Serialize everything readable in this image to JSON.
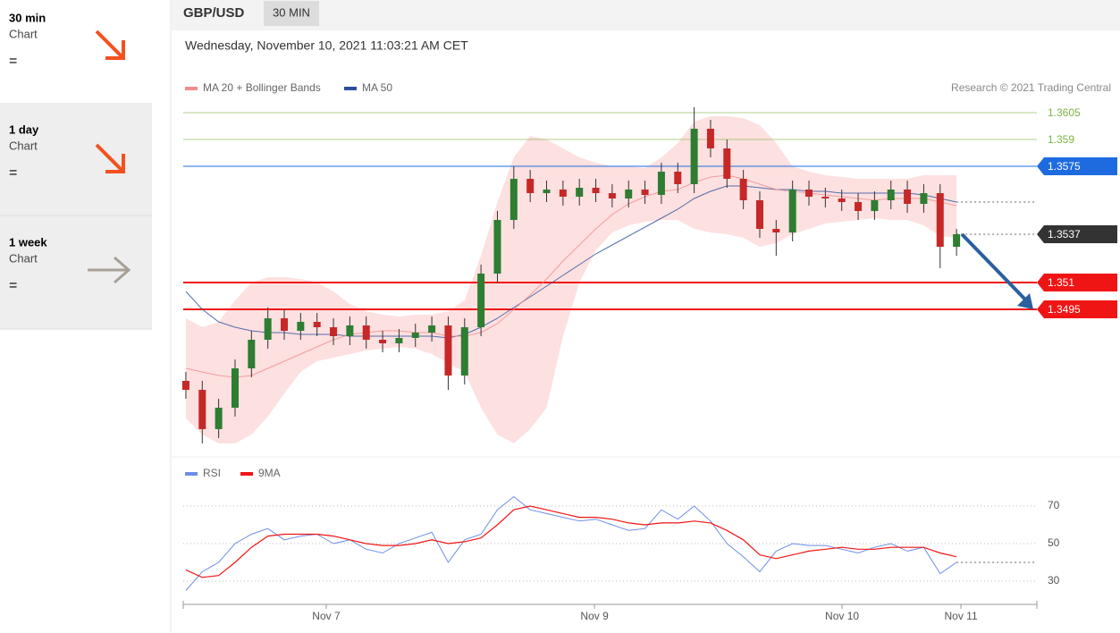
{
  "sidebar": [
    {
      "period": "30 min",
      "label": "Chart",
      "signal": "="
    },
    {
      "period": "1 day",
      "label": "Chart",
      "signal": "="
    },
    {
      "period": "1 week",
      "label": "Chart",
      "signal": "="
    }
  ],
  "header": {
    "symbol": "GBP/USD",
    "interval": "30 MIN",
    "timestamp": "Wednesday, November 10, 2021 11:03:21 AM CET"
  },
  "chart_data": [
    {
      "type": "candlestick",
      "legend": [
        {
          "name": "MA 20 + Bollinger Bands",
          "color": "#f28b8b"
        },
        {
          "name": "MA 50",
          "color": "#2b4f9e"
        }
      ],
      "credit": "Research © 2021 Trading Central",
      "xlim": [
        -0.16,
        51.9
      ],
      "xticks": [
        {
          "value": 8.56,
          "label": "Nov 7"
        },
        {
          "value": 24.92,
          "label": "Nov 9"
        },
        {
          "value": 40.02,
          "label": "Nov 10"
        },
        {
          "value": 47.27,
          "label": "Nov 11"
        }
      ],
      "ylim": [
        1.342,
        1.361
      ],
      "levels": [
        {
          "value": 1.3605,
          "color": "#7cb342",
          "style": "text"
        },
        {
          "value": 1.359,
          "color": "#7cb342",
          "style": "text"
        },
        {
          "value": 1.3575,
          "color": "#1e6be0",
          "style": "box"
        },
        {
          "value": 1.3537,
          "color": "#333333",
          "style": "box"
        },
        {
          "value": 1.351,
          "color": "#f01515",
          "style": "box"
        },
        {
          "value": 1.3495,
          "color": "#f01515",
          "style": "box"
        }
      ],
      "open": [
        1.3455,
        1.345,
        1.3428,
        1.344,
        1.3462,
        1.3478,
        1.349,
        1.3483,
        1.3488,
        1.3485,
        1.348,
        1.3486,
        1.3478,
        1.3476,
        1.3479,
        1.3482,
        1.3486,
        1.3458,
        1.3485,
        1.3515,
        1.3545,
        1.3568,
        1.356,
        1.3562,
        1.3558,
        1.3563,
        1.356,
        1.3557,
        1.3562,
        1.3559,
        1.3572,
        1.3565,
        1.3596,
        1.3585,
        1.3568,
        1.3556,
        1.354,
        1.3538,
        1.3562,
        1.3558,
        1.3557,
        1.3555,
        1.355,
        1.3556,
        1.3562,
        1.3554,
        1.356,
        1.353
      ],
      "high": [
        1.346,
        1.3455,
        1.3445,
        1.3467,
        1.3483,
        1.3496,
        1.3495,
        1.3493,
        1.3493,
        1.349,
        1.3491,
        1.3491,
        1.3483,
        1.3484,
        1.3487,
        1.3491,
        1.3491,
        1.349,
        1.352,
        1.355,
        1.3575,
        1.3573,
        1.3567,
        1.3567,
        1.3568,
        1.3568,
        1.3565,
        1.3567,
        1.3567,
        1.3577,
        1.3577,
        1.3608,
        1.3601,
        1.359,
        1.3573,
        1.3561,
        1.3545,
        1.3567,
        1.3567,
        1.3563,
        1.3562,
        1.356,
        1.3561,
        1.3567,
        1.3567,
        1.3565,
        1.3565,
        1.354
      ],
      "low": [
        1.3445,
        1.342,
        1.3423,
        1.3435,
        1.3457,
        1.3473,
        1.3478,
        1.3478,
        1.348,
        1.3475,
        1.3475,
        1.3473,
        1.3471,
        1.3471,
        1.3474,
        1.3477,
        1.345,
        1.3453,
        1.348,
        1.351,
        1.354,
        1.3555,
        1.3555,
        1.3553,
        1.3553,
        1.3555,
        1.3552,
        1.3552,
        1.3554,
        1.3554,
        1.356,
        1.356,
        1.358,
        1.3563,
        1.3551,
        1.3535,
        1.3525,
        1.3533,
        1.3553,
        1.3552,
        1.355,
        1.3545,
        1.3545,
        1.3551,
        1.3549,
        1.3549,
        1.3518,
        1.3525
      ],
      "close": [
        1.345,
        1.3428,
        1.344,
        1.3462,
        1.3478,
        1.349,
        1.3483,
        1.3488,
        1.3485,
        1.348,
        1.3486,
        1.3478,
        1.3476,
        1.3479,
        1.3482,
        1.3486,
        1.3458,
        1.3485,
        1.3515,
        1.3545,
        1.3568,
        1.356,
        1.3562,
        1.3558,
        1.3563,
        1.356,
        1.3557,
        1.3562,
        1.3559,
        1.3572,
        1.3565,
        1.3596,
        1.3585,
        1.3568,
        1.3556,
        1.354,
        1.3538,
        1.3562,
        1.3558,
        1.3557,
        1.3555,
        1.355,
        1.3556,
        1.3562,
        1.3554,
        1.356,
        1.353,
        1.3537
      ],
      "ma20": [
        1.3462,
        1.346,
        1.3458,
        1.3457,
        1.3458,
        1.3462,
        1.3466,
        1.347,
        1.3474,
        1.3478,
        1.3481,
        1.3482,
        1.3483,
        1.3483,
        1.3482,
        1.3482,
        1.348,
        1.348,
        1.3482,
        1.3487,
        1.3495,
        1.3503,
        1.3512,
        1.3522,
        1.3531,
        1.354,
        1.3548,
        1.3554,
        1.3558,
        1.3561,
        1.3562,
        1.3566,
        1.3569,
        1.357,
        1.3568,
        1.3565,
        1.3562,
        1.3561,
        1.356,
        1.3559,
        1.3558,
        1.3557,
        1.3556,
        1.3557,
        1.3557,
        1.3557,
        1.3555,
        1.3553
      ],
      "ma50": [
        1.3505,
        1.3495,
        1.3488,
        1.3485,
        1.3483,
        1.3482,
        1.3482,
        1.3481,
        1.3481,
        1.3481,
        1.348,
        1.348,
        1.348,
        1.348,
        1.348,
        1.348,
        1.3479,
        1.3481,
        1.3485,
        1.349,
        1.3496,
        1.3502,
        1.3508,
        1.3514,
        1.352,
        1.3526,
        1.3531,
        1.3536,
        1.3541,
        1.3546,
        1.3551,
        1.3557,
        1.3561,
        1.3564,
        1.3564,
        1.3563,
        1.3562,
        1.3562,
        1.3561,
        1.3561,
        1.356,
        1.356,
        1.356,
        1.356,
        1.356,
        1.3559,
        1.3557,
        1.3555
      ],
      "bb_upper": [
        1.349,
        1.3485,
        1.3488,
        1.35,
        1.351,
        1.3513,
        1.3513,
        1.3512,
        1.351,
        1.3505,
        1.3498,
        1.3494,
        1.3492,
        1.3491,
        1.3492,
        1.3492,
        1.3494,
        1.35,
        1.3525,
        1.3555,
        1.358,
        1.3592,
        1.359,
        1.3585,
        1.358,
        1.3577,
        1.3575,
        1.3575,
        1.3574,
        1.358,
        1.3588,
        1.36,
        1.3603,
        1.3603,
        1.3602,
        1.3598,
        1.3588,
        1.3575,
        1.3572,
        1.357,
        1.3569,
        1.3568,
        1.3568,
        1.3568,
        1.3568,
        1.357,
        1.357,
        1.357
      ],
      "bb_lower": [
        1.3434,
        1.3425,
        1.342,
        1.342,
        1.3425,
        1.3435,
        1.3448,
        1.346,
        1.3466,
        1.3468,
        1.347,
        1.3472,
        1.3473,
        1.3474,
        1.3473,
        1.347,
        1.3465,
        1.346,
        1.344,
        1.3425,
        1.342,
        1.3428,
        1.344,
        1.348,
        1.351,
        1.3528,
        1.3538,
        1.3542,
        1.3544,
        1.3545,
        1.3545,
        1.354,
        1.3538,
        1.3537,
        1.3535,
        1.353,
        1.3532,
        1.3537,
        1.354,
        1.3543,
        1.3544,
        1.3545,
        1.3546,
        1.3545,
        1.3545,
        1.3542,
        1.3536,
        1.3535
      ]
    },
    {
      "type": "line",
      "ylim": [
        20,
        90
      ],
      "yticks": [
        30,
        50,
        70
      ],
      "grid": true,
      "series": [
        {
          "name": "RSI",
          "color": "#6d8ee8",
          "values": [
            25,
            35,
            40,
            50,
            55,
            58,
            52,
            54,
            55,
            50,
            52,
            47,
            45,
            50,
            53,
            56,
            40,
            52,
            55,
            68,
            75,
            68,
            66,
            64,
            62,
            63,
            60,
            57,
            58,
            68,
            63,
            70,
            62,
            50,
            43,
            35,
            46,
            50,
            49,
            49,
            47,
            45,
            48,
            50,
            46,
            48,
            34,
            40
          ]
        },
        {
          "name": "9MA",
          "color": "#f01515",
          "values": [
            36,
            32,
            33,
            40,
            48,
            54,
            55,
            55,
            55,
            54,
            52,
            50,
            49,
            49,
            50,
            52,
            50,
            51,
            53,
            60,
            68,
            70,
            68,
            66,
            64,
            64,
            63,
            61,
            60,
            61,
            61,
            62,
            61,
            57,
            52,
            44,
            42,
            44,
            46,
            47,
            48,
            47,
            47,
            48,
            48,
            48,
            45,
            43
          ]
        }
      ]
    }
  ]
}
